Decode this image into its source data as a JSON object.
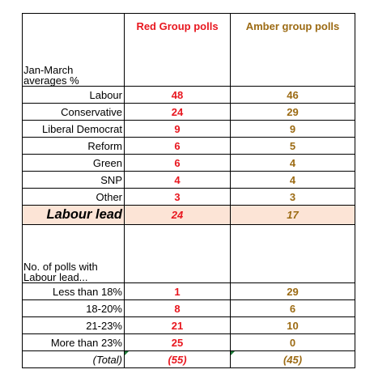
{
  "header": {
    "red_label": "Red Group polls",
    "amber_label": "Amber group polls"
  },
  "section1": {
    "label_line1": "Jan-March",
    "label_line2": "averages %",
    "rows": [
      {
        "label": "Labour",
        "red": "48",
        "amber": "46"
      },
      {
        "label": "Conservative",
        "red": "24",
        "amber": "29"
      },
      {
        "label": "Liberal Democrat",
        "red": "9",
        "amber": "9"
      },
      {
        "label": "Reform",
        "red": "6",
        "amber": "5"
      },
      {
        "label": "Green",
        "red": "6",
        "amber": "4"
      },
      {
        "label": "SNP",
        "red": "4",
        "amber": "4"
      },
      {
        "label": "Other",
        "red": "3",
        "amber": "3"
      }
    ]
  },
  "lead": {
    "label": "Labour lead",
    "red": "24",
    "amber": "17"
  },
  "section2": {
    "label_line1": "No. of polls with",
    "label_line2": "Labour lead...",
    "rows": [
      {
        "label": "Less than 18%",
        "red": "1",
        "amber": "29"
      },
      {
        "label": "18-20%",
        "red": "8",
        "amber": "6"
      },
      {
        "label": "21-23%",
        "red": "21",
        "amber": "10"
      },
      {
        "label": "More than 23%",
        "red": "25",
        "amber": "0"
      }
    ]
  },
  "total": {
    "label": "(Total)",
    "red": "(55)",
    "amber": "(45)"
  },
  "colors": {
    "red": "#e8171f",
    "amber": "#9c6b14",
    "lead_fill": "#fce4d6",
    "marker": "#1f7b3a"
  }
}
